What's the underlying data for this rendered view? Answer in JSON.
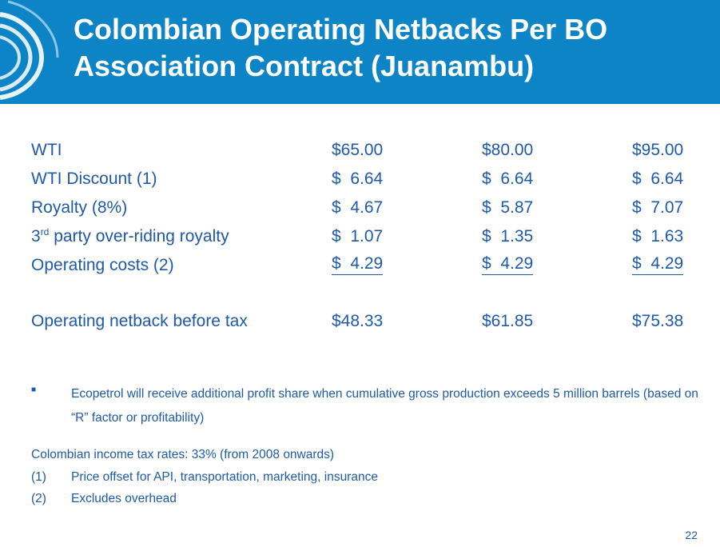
{
  "header": {
    "title_line1": "Colombian Operating Netbacks Per BO",
    "title_line2": "Association Contract (Juanambu)"
  },
  "table": {
    "rows": [
      {
        "label": "WTI",
        "values": [
          "$65.00",
          "$80.00",
          "$95.00"
        ]
      },
      {
        "label": "WTI Discount (1)",
        "values": [
          "$  6.64",
          "$  6.64",
          "$  6.64"
        ]
      },
      {
        "label": "Royalty (8%)",
        "values": [
          "$  4.67",
          "$  5.87",
          "$  7.07"
        ]
      },
      {
        "label_prefix": "3",
        "label_sup": "rd",
        "label_rest": " party over-riding royalty",
        "values": [
          "$  1.07",
          "$  1.35",
          "$  1.63"
        ]
      },
      {
        "label": "Operating costs (2)",
        "values": [
          "$  4.29",
          "$  4.29",
          "$  4.29"
        ]
      },
      {
        "label": "Operating netback before tax",
        "values": [
          "$48.33",
          "$61.85",
          "$75.38"
        ]
      }
    ]
  },
  "bullet": {
    "marker": "■",
    "text": "Ecopetrol will receive additional profit share when cumulative gross production exceeds 5 million barrels (based on “R” factor or profitability)"
  },
  "notes": {
    "tax": "Colombian income tax rates: 33% (from 2008 onwards)",
    "items": [
      {
        "num": "(1)",
        "text": "Price offset for API, transportation, marketing, insurance"
      },
      {
        "num": "(2)",
        "text": "Excludes overhead"
      }
    ]
  },
  "page_number": "22",
  "colors": {
    "header_bg": "#0c84c6",
    "text": "#1f5aa8"
  }
}
